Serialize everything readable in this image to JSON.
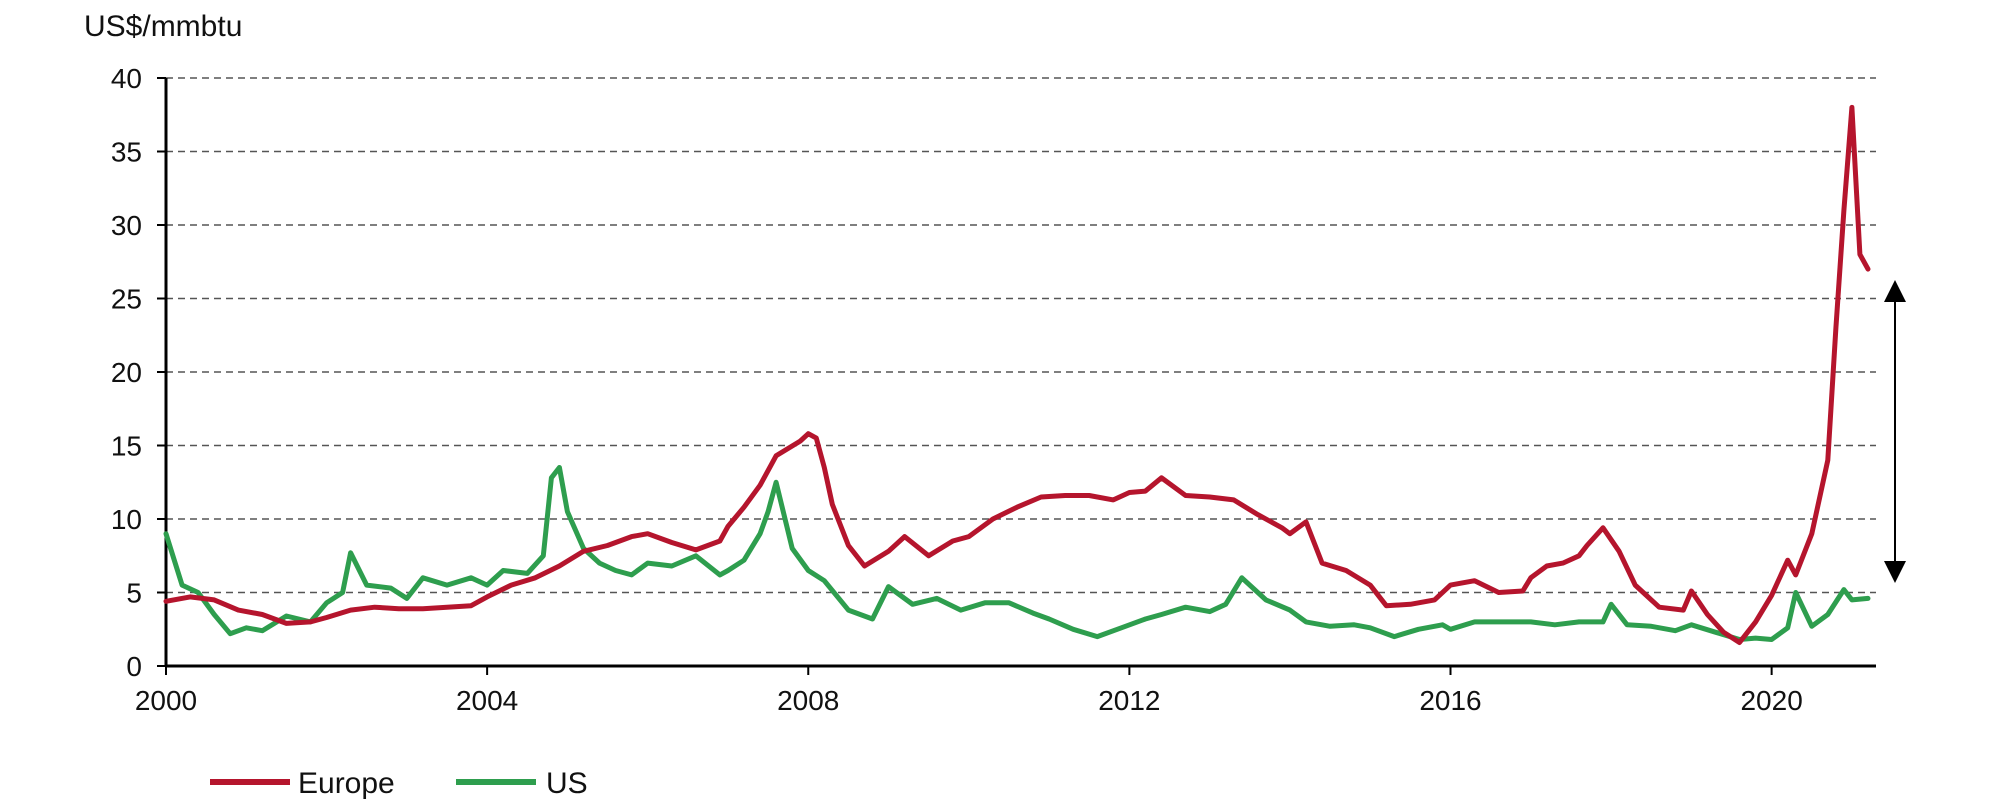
{
  "chart_data": {
    "type": "line",
    "ylabel": "US$/mmbtu",
    "xlim": [
      2000,
      2021.3
    ],
    "ylim": [
      0,
      40
    ],
    "x_ticks": [
      "2000",
      "2004",
      "2008",
      "2012",
      "2016",
      "2020"
    ],
    "y_ticks": [
      "0",
      "5",
      "10",
      "15",
      "20",
      "25",
      "30",
      "35",
      "40"
    ],
    "grid": true,
    "legend_position": "bottom-left",
    "annotation": "double-headed arrow spanning about 6 to 25 at the right edge",
    "series": [
      {
        "name": "Europe",
        "color": "#b5152d",
        "x": [
          2000.0,
          2000.3,
          2000.6,
          2000.9,
          2001.2,
          2001.5,
          2001.8,
          2002.0,
          2002.3,
          2002.6,
          2002.9,
          2003.2,
          2003.5,
          2003.8,
          2004.0,
          2004.3,
          2004.6,
          2004.9,
          2005.2,
          2005.5,
          2005.8,
          2006.0,
          2006.3,
          2006.6,
          2006.9,
          2007.0,
          2007.2,
          2007.4,
          2007.6,
          2007.9,
          2008.0,
          2008.1,
          2008.2,
          2008.3,
          2008.5,
          2008.7,
          2009.0,
          2009.2,
          2009.5,
          2009.8,
          2010.0,
          2010.3,
          2010.6,
          2010.9,
          2011.2,
          2011.5,
          2011.8,
          2012.0,
          2012.2,
          2012.4,
          2012.7,
          2013.0,
          2013.3,
          2013.6,
          2013.9,
          2014.0,
          2014.2,
          2014.4,
          2014.7,
          2015.0,
          2015.2,
          2015.5,
          2015.8,
          2016.0,
          2016.3,
          2016.6,
          2016.9,
          2017.0,
          2017.2,
          2017.4,
          2017.6,
          2017.7,
          2017.9,
          2018.1,
          2018.3,
          2018.6,
          2018.9,
          2019.0,
          2019.2,
          2019.4,
          2019.6,
          2019.8,
          2020.0,
          2020.2,
          2020.3,
          2020.5,
          2020.7,
          2020.8,
          2020.9,
          2021.0,
          2021.1,
          2021.2
        ],
        "values": [
          4.4,
          4.7,
          4.5,
          3.8,
          3.5,
          2.9,
          3.0,
          3.3,
          3.8,
          4.0,
          3.9,
          3.9,
          4.0,
          4.1,
          4.7,
          5.5,
          6.0,
          6.8,
          7.8,
          8.2,
          8.8,
          9.0,
          8.4,
          7.9,
          8.5,
          9.5,
          10.8,
          12.3,
          14.3,
          15.3,
          15.8,
          15.5,
          13.5,
          11.0,
          8.2,
          6.8,
          7.8,
          8.8,
          7.5,
          8.5,
          8.8,
          10.0,
          10.8,
          11.5,
          11.6,
          11.6,
          11.3,
          11.8,
          11.9,
          12.8,
          11.6,
          11.5,
          11.3,
          10.3,
          9.4,
          9.0,
          9.8,
          7.0,
          6.5,
          5.5,
          4.1,
          4.2,
          4.5,
          5.5,
          5.8,
          5.0,
          5.1,
          6.0,
          6.8,
          7.0,
          7.5,
          8.2,
          9.4,
          7.8,
          5.5,
          4.0,
          3.8,
          5.1,
          3.5,
          2.3,
          1.6,
          3.0,
          4.8,
          7.2,
          6.2,
          9.0,
          14.0,
          23.0,
          31.0,
          38.0,
          28.0,
          27.0
        ]
      },
      {
        "name": "US",
        "color": "#2e9e4e",
        "x": [
          2000.0,
          2000.2,
          2000.4,
          2000.6,
          2000.8,
          2001.0,
          2001.2,
          2001.5,
          2001.8,
          2002.0,
          2002.2,
          2002.3,
          2002.5,
          2002.8,
          2003.0,
          2003.2,
          2003.5,
          2003.8,
          2004.0,
          2004.2,
          2004.5,
          2004.7,
          2004.8,
          2004.9,
          2005.0,
          2005.2,
          2005.4,
          2005.6,
          2005.8,
          2006.0,
          2006.3,
          2006.6,
          2006.9,
          2007.0,
          2007.2,
          2007.4,
          2007.5,
          2007.6,
          2007.8,
          2008.0,
          2008.2,
          2008.5,
          2008.8,
          2009.0,
          2009.3,
          2009.6,
          2009.9,
          2010.2,
          2010.5,
          2010.8,
          2011.0,
          2011.3,
          2011.6,
          2011.9,
          2012.2,
          2012.4,
          2012.7,
          2013.0,
          2013.2,
          2013.4,
          2013.7,
          2014.0,
          2014.2,
          2014.5,
          2014.8,
          2015.0,
          2015.3,
          2015.6,
          2015.9,
          2016.0,
          2016.3,
          2016.6,
          2016.9,
          2017.0,
          2017.3,
          2017.6,
          2017.9,
          2018.0,
          2018.2,
          2018.5,
          2018.8,
          2019.0,
          2019.3,
          2019.6,
          2019.8,
          2020.0,
          2020.2,
          2020.3,
          2020.5,
          2020.7,
          2020.9,
          2021.0,
          2021.2
        ],
        "values": [
          9.0,
          5.5,
          5.0,
          3.5,
          2.2,
          2.6,
          2.4,
          3.4,
          3.0,
          4.3,
          5.0,
          7.7,
          5.5,
          5.3,
          4.6,
          6.0,
          5.5,
          6.0,
          5.5,
          6.5,
          6.3,
          7.5,
          12.8,
          13.5,
          10.5,
          8.0,
          7.0,
          6.5,
          6.2,
          7.0,
          6.8,
          7.5,
          6.2,
          6.5,
          7.2,
          9.0,
          10.5,
          12.5,
          8.0,
          6.5,
          5.8,
          3.8,
          3.2,
          5.4,
          4.2,
          4.6,
          3.8,
          4.3,
          4.3,
          3.6,
          3.2,
          2.5,
          2.0,
          2.6,
          3.2,
          3.5,
          4.0,
          3.7,
          4.2,
          6.0,
          4.5,
          3.8,
          3.0,
          2.7,
          2.8,
          2.6,
          2.0,
          2.5,
          2.8,
          2.5,
          3.0,
          3.0,
          3.0,
          3.0,
          2.8,
          3.0,
          3.0,
          4.2,
          2.8,
          2.7,
          2.4,
          2.8,
          2.3,
          1.8,
          1.9,
          1.8,
          2.6,
          5.0,
          2.7,
          3.5,
          5.2,
          4.5,
          4.6
        ]
      }
    ]
  }
}
